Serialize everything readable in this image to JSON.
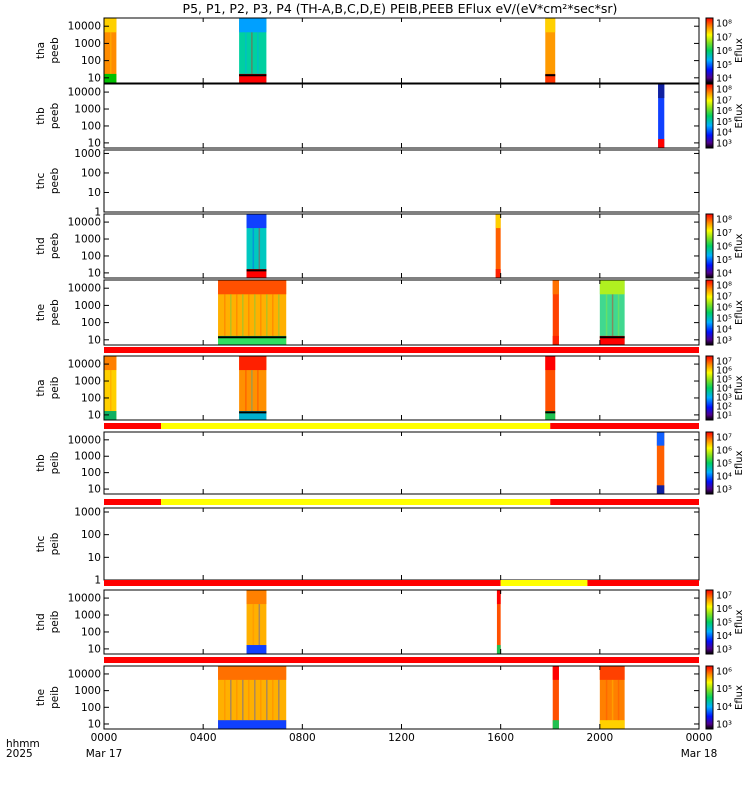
{
  "title": "P5, P1, P2, P3, P4 (TH-A,B,C,D,E) PEIB,PEEB EFlux eV/(eV*cm²*sec*sr)",
  "x_axis": {
    "label_lines": [
      "hhmm",
      "2025"
    ],
    "ticks": [
      "0000",
      "0400",
      "0800",
      "1200",
      "1600",
      "2000",
      "0000"
    ],
    "date_labels": {
      "start": "Mar 17",
      "end": "Mar 18"
    },
    "range_hours": [
      0,
      24
    ]
  },
  "colors": {
    "quality_red": "#ff0000",
    "quality_yellow": "#ffff00",
    "axis": "#000000"
  },
  "chart_data": [
    {
      "type": "heatmap",
      "id": "tha_peeb",
      "ylabel_lines": [
        "tha",
        "peeb"
      ],
      "yticks": [
        "10000",
        "1000",
        "100",
        "10"
      ],
      "ylim": [
        5,
        30000
      ],
      "colorbar": {
        "label": "Eflux",
        "ticks": [
          "10⁸",
          "10⁷",
          "10⁶",
          "10⁵",
          "10⁴"
        ]
      },
      "segments": [
        {
          "t": [
            0.0,
            0.5
          ],
          "bg": "#ff8c00",
          "low": "#00c000",
          "high": "#ffd000",
          "black_edge": false
        },
        {
          "t": [
            5.45,
            6.55
          ],
          "bg": "#00d0a0",
          "low": "#ff0000",
          "high": "#00a0ff",
          "black_edge": true
        },
        {
          "t": [
            17.8,
            18.2
          ],
          "bg": "#ff9a00",
          "low": "#ff3300",
          "high": "#ffd000",
          "black_edge": true
        }
      ]
    },
    {
      "type": "heatmap",
      "id": "thb_peeb",
      "ylabel_lines": [
        "thb",
        "peeb"
      ],
      "yticks": [
        "10000",
        "1000",
        "100",
        "10"
      ],
      "ylim": [
        5,
        30000
      ],
      "colorbar": {
        "label": "Eflux",
        "ticks": [
          "10⁸",
          "10⁷",
          "10⁶",
          "10⁵",
          "10⁴",
          "10³"
        ]
      },
      "segments": [
        {
          "t": [
            22.35,
            22.6
          ],
          "bg": "#1040ff",
          "low": "#ff0000",
          "high": "#1020a0",
          "black_edge": false
        }
      ]
    },
    {
      "type": "heatmap",
      "id": "thc_peeb",
      "ylabel_lines": [
        "thc",
        "peeb"
      ],
      "yticks": [
        "1000",
        "100",
        "10",
        "1"
      ],
      "ylim": [
        1,
        1500
      ],
      "colorbar": null,
      "segments": []
    },
    {
      "type": "heatmap",
      "id": "thd_peeb",
      "ylabel_lines": [
        "thd",
        "peeb"
      ],
      "yticks": [
        "10000",
        "1000",
        "100",
        "10"
      ],
      "ylim": [
        5,
        30000
      ],
      "colorbar": {
        "label": "Eflux",
        "ticks": [
          "10⁸",
          "10⁷",
          "10⁶",
          "10⁵",
          "10⁴"
        ]
      },
      "segments": [
        {
          "t": [
            5.75,
            6.55
          ],
          "bg": "#00c8c0",
          "low": "#ff0000",
          "high": "#1040ff",
          "black_edge": true
        },
        {
          "t": [
            15.8,
            16.0
          ],
          "bg": "#ff6000",
          "low": "#ff2000",
          "high": "#ffd000",
          "black_edge": false
        }
      ]
    },
    {
      "type": "heatmap",
      "id": "the_peeb",
      "ylabel_lines": [
        "the",
        "peeb"
      ],
      "yticks": [
        "10000",
        "1000",
        "100",
        "10"
      ],
      "ylim": [
        5,
        30000
      ],
      "colorbar": {
        "label": "Eflux",
        "ticks": [
          "10⁸",
          "10⁷",
          "10⁶",
          "10⁵",
          "10⁴",
          "10³"
        ]
      },
      "segments": [
        {
          "t": [
            4.6,
            7.35
          ],
          "bg": "#ffb000",
          "low": "#30e060",
          "high": "#ff5000",
          "black_edge": true
        },
        {
          "t": [
            18.1,
            18.35
          ],
          "bg": "#ff4000",
          "low": "#ff2000",
          "high": "#ff7000",
          "black_edge": false
        },
        {
          "t": [
            20.0,
            21.0
          ],
          "bg": "#40d890",
          "low": "#ff0000",
          "high": "#b0f020",
          "black_edge": true
        }
      ]
    },
    {
      "type": "heatmap",
      "id": "tha_peib",
      "ylabel_lines": [
        "tha",
        "peib"
      ],
      "yticks": [
        "10000",
        "1000",
        "100",
        "10"
      ],
      "ylim": [
        5,
        30000
      ],
      "colorbar": {
        "label": "Eflux",
        "ticks": [
          "10⁷",
          "10⁶",
          "10⁵",
          "10⁴",
          "10³",
          "10²",
          "10¹"
        ]
      },
      "quality_bar": [
        {
          "t": [
            0,
            24
          ],
          "c": "red"
        }
      ],
      "segments": [
        {
          "t": [
            0.0,
            0.5
          ],
          "bg": "#ffd000",
          "low": "#10b060",
          "high": "#ff8000",
          "black_edge": false
        },
        {
          "t": [
            5.45,
            6.55
          ],
          "bg": "#ff9000",
          "low": "#00b0d0",
          "high": "#ff2000",
          "black_edge": true
        },
        {
          "t": [
            17.8,
            18.2
          ],
          "bg": "#ff5000",
          "low": "#20c050",
          "high": "#ff0000",
          "black_edge": true
        }
      ]
    },
    {
      "type": "heatmap",
      "id": "thb_peib",
      "ylabel_lines": [
        "thb",
        "peib"
      ],
      "yticks": [
        "10000",
        "1000",
        "100",
        "10"
      ],
      "ylim": [
        5,
        30000
      ],
      "colorbar": {
        "label": "Eflux",
        "ticks": [
          "10⁷",
          "10⁶",
          "10⁵",
          "10⁴",
          "10³"
        ]
      },
      "quality_bar": [
        {
          "t": [
            0,
            2.3
          ],
          "c": "red"
        },
        {
          "t": [
            2.3,
            18.0
          ],
          "c": "yellow"
        },
        {
          "t": [
            18.0,
            24
          ],
          "c": "red"
        }
      ],
      "segments": [
        {
          "t": [
            22.3,
            22.6
          ],
          "bg": "#ff6000",
          "low": "#1020a0",
          "high": "#1060ff",
          "black_edge": false
        }
      ]
    },
    {
      "type": "heatmap",
      "id": "thc_peib",
      "ylabel_lines": [
        "thc",
        "peib"
      ],
      "yticks": [
        "1000",
        "100",
        "10",
        "1"
      ],
      "ylim": [
        1,
        1500
      ],
      "colorbar": null,
      "quality_bar": [
        {
          "t": [
            0,
            2.3
          ],
          "c": "red"
        },
        {
          "t": [
            2.3,
            18.0
          ],
          "c": "yellow"
        },
        {
          "t": [
            18.0,
            24
          ],
          "c": "red"
        }
      ],
      "segments": []
    },
    {
      "type": "heatmap",
      "id": "thd_peib",
      "ylabel_lines": [
        "thd",
        "peib"
      ],
      "yticks": [
        "10000",
        "1000",
        "100",
        "10"
      ],
      "ylim": [
        5,
        30000
      ],
      "colorbar": {
        "label": "Eflux",
        "ticks": [
          "10⁷",
          "10⁶",
          "10⁵",
          "10⁴",
          "10³"
        ]
      },
      "quality_bar": [
        {
          "t": [
            0,
            16.0
          ],
          "c": "red"
        },
        {
          "t": [
            16.0,
            19.5
          ],
          "c": "yellow"
        },
        {
          "t": [
            19.5,
            24
          ],
          "c": "red"
        }
      ],
      "segments": [
        {
          "t": [
            5.75,
            6.55
          ],
          "bg": "#ffb000",
          "low": "#1040ff",
          "high": "#ff8000",
          "black_edge": false
        },
        {
          "t": [
            15.85,
            16.0
          ],
          "bg": "#ff5000",
          "low": "#20c050",
          "high": "#ff0000",
          "black_edge": false
        }
      ]
    },
    {
      "type": "heatmap",
      "id": "the_peib",
      "ylabel_lines": [
        "the",
        "peib"
      ],
      "yticks": [
        "10000",
        "1000",
        "100",
        "10"
      ],
      "ylim": [
        5,
        30000
      ],
      "colorbar": {
        "label": "Eflux",
        "ticks": [
          "10⁶",
          "10⁵",
          "10⁴",
          "10³"
        ]
      },
      "quality_bar": [
        {
          "t": [
            0,
            24
          ],
          "c": "red"
        }
      ],
      "segments": [
        {
          "t": [
            4.6,
            7.35
          ],
          "bg": "#ffb000",
          "low": "#1040ff",
          "high": "#ff7000",
          "black_edge": false
        },
        {
          "t": [
            18.1,
            18.35
          ],
          "bg": "#ff5000",
          "low": "#20c050",
          "high": "#ff0000",
          "black_edge": false
        },
        {
          "t": [
            20.0,
            21.0
          ],
          "bg": "#ff8000",
          "low": "#ffd000",
          "high": "#ff4000",
          "black_edge": false
        }
      ]
    }
  ]
}
